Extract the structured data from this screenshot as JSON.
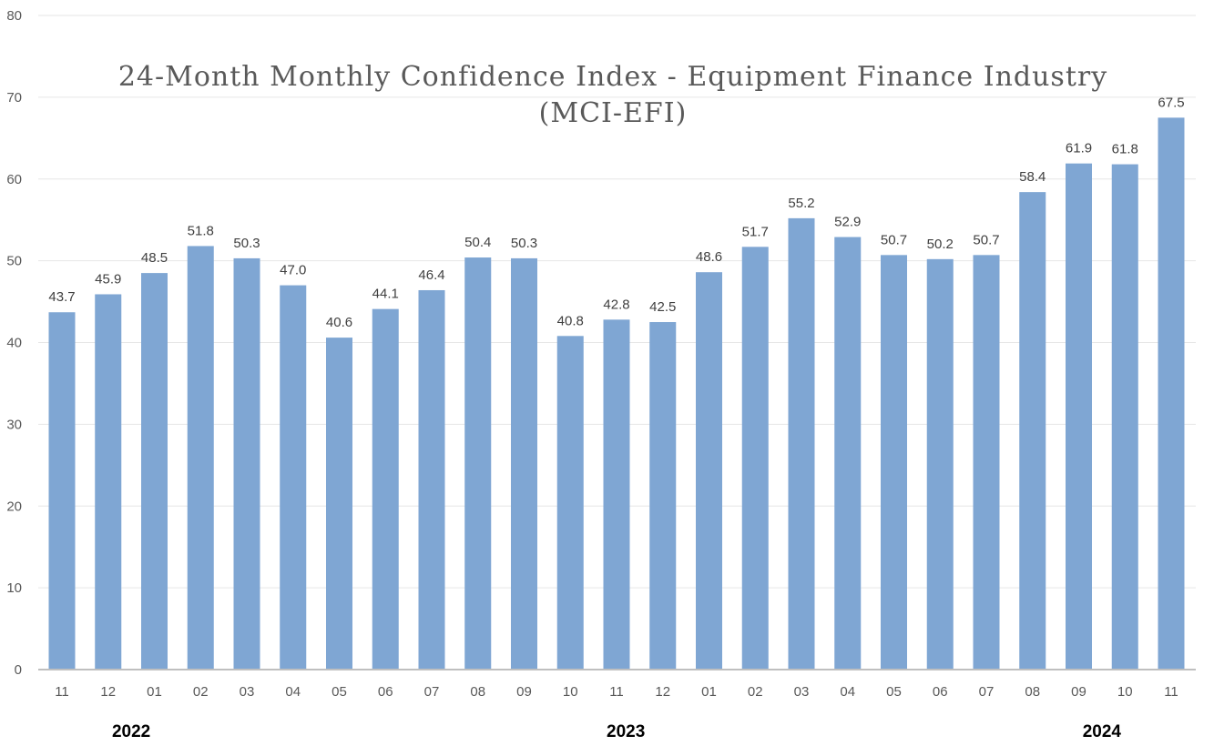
{
  "chart_data": {
    "type": "bar",
    "title": [
      "24-Month Monthly Confidence Index - Equipment Finance Industry",
      "(MCI-EFI)"
    ],
    "xlabel": "",
    "ylabel": "",
    "categories": [
      "11",
      "12",
      "01",
      "02",
      "03",
      "04",
      "05",
      "06",
      "07",
      "08",
      "09",
      "10",
      "11",
      "12",
      "01",
      "02",
      "03",
      "04",
      "05",
      "06",
      "07",
      "08",
      "09",
      "10",
      "11"
    ],
    "year_labels": [
      {
        "label": "2022",
        "category_index": 1.5
      },
      {
        "label": "2023",
        "category_index": 12.2
      },
      {
        "label": "2024",
        "category_index": 22.5
      }
    ],
    "values": [
      43.7,
      45.9,
      48.5,
      51.8,
      50.3,
      47.0,
      40.6,
      44.1,
      46.4,
      50.4,
      50.3,
      40.8,
      42.8,
      42.5,
      48.6,
      51.7,
      55.2,
      52.9,
      50.7,
      50.2,
      50.7,
      58.4,
      61.9,
      61.8,
      67.5
    ],
    "ylim": [
      0,
      80
    ],
    "yticks": [
      0,
      10,
      20,
      30,
      40,
      50,
      60,
      70,
      80
    ],
    "grid": true,
    "legend": "none",
    "data_labels": true,
    "colors": {
      "bar": "#7fa6d3",
      "grid": "#e6e6e6",
      "axis": "#bfbfbf"
    }
  }
}
